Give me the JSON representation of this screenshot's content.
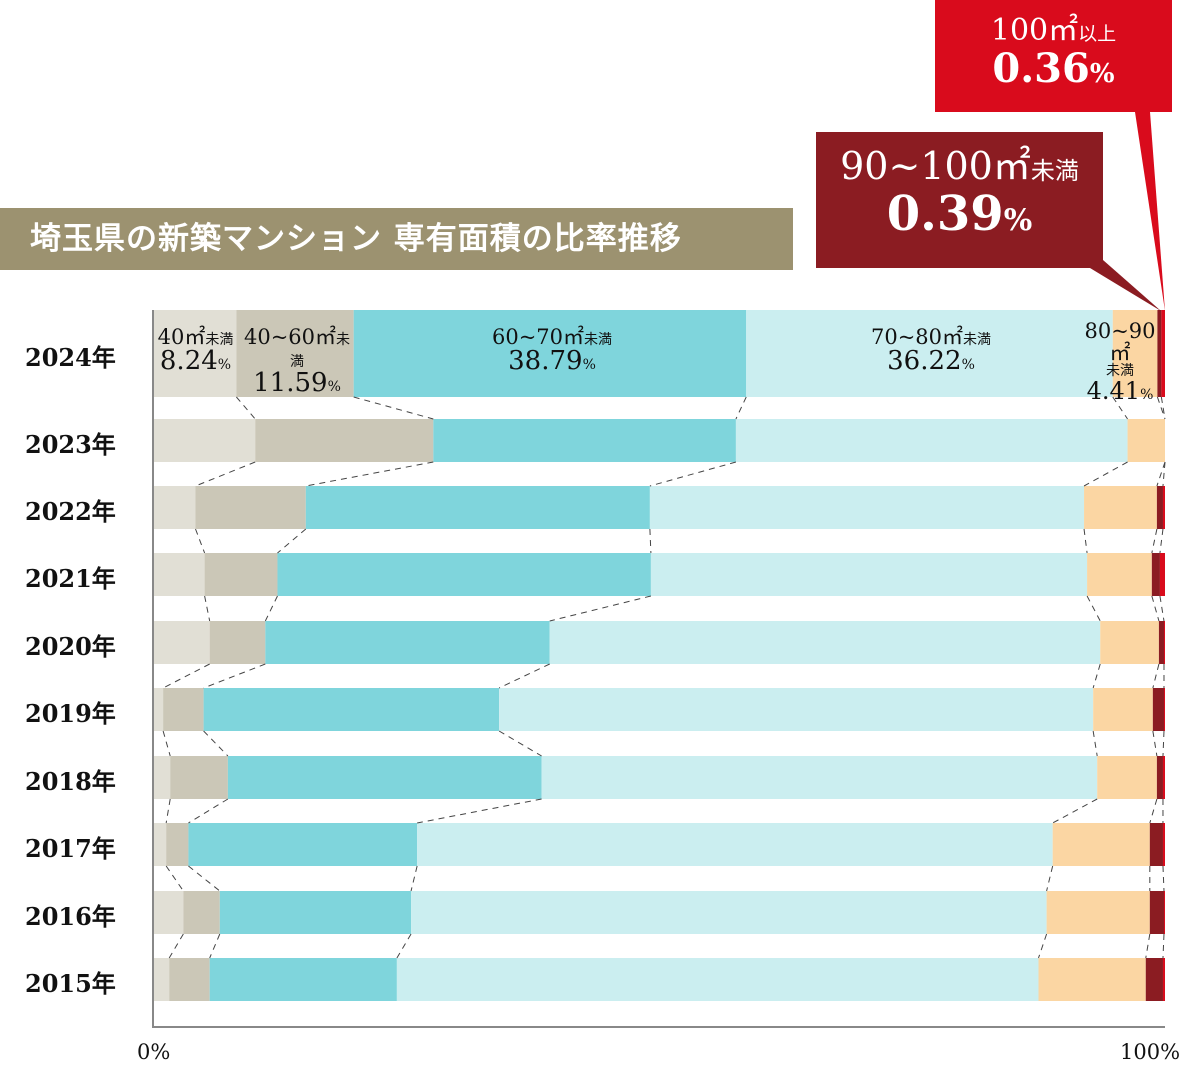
{
  "title": "埼玉県の新築マンション 専有面積の比率推移",
  "chart_data": {
    "type": "bar",
    "orientation": "horizontal-stacked-100",
    "title": "埼玉県の新築マンション 専有面積の比率推移",
    "xlim": [
      0,
      100
    ],
    "x_tick_labels": [
      "0%",
      "100%"
    ],
    "categories": [
      "2024年",
      "2023年",
      "2022年",
      "2021年",
      "2020年",
      "2019年",
      "2018年",
      "2017年",
      "2016年",
      "2015年"
    ],
    "series": [
      {
        "name": "40㎡未満",
        "color": "#e1dfd5",
        "values": [
          8.24,
          10.1,
          4.2,
          5.1,
          5.6,
          1.0,
          1.7,
          1.3,
          3.0,
          1.6
        ]
      },
      {
        "name": "40~60㎡未満",
        "color": "#cbc7b7",
        "values": [
          11.59,
          17.6,
          10.9,
          7.2,
          5.5,
          4.0,
          5.7,
          2.2,
          3.6,
          4.0
        ]
      },
      {
        "name": "60~70㎡未満",
        "color": "#7fd5dc",
        "values": [
          38.79,
          29.9,
          34.0,
          36.9,
          28.1,
          29.2,
          31.0,
          22.6,
          18.9,
          18.5
        ]
      },
      {
        "name": "70~80㎡未満",
        "color": "#cbeef0",
        "values": [
          36.22,
          38.7,
          42.9,
          43.1,
          54.4,
          58.7,
          54.9,
          62.8,
          62.8,
          63.4
        ]
      },
      {
        "name": "80~90㎡未満",
        "color": "#fbd6a3",
        "values": [
          4.41,
          3.7,
          7.2,
          6.4,
          5.8,
          5.9,
          5.9,
          9.6,
          10.2,
          10.6
        ]
      },
      {
        "name": "90~100㎡未満",
        "color": "#8b1c22",
        "values": [
          0.39,
          0,
          0.6,
          0.8,
          0.5,
          1.1,
          0.6,
          1.3,
          1.4,
          1.7
        ]
      },
      {
        "name": "100㎡以上",
        "color": "#d90b1c",
        "values": [
          0.36,
          0,
          0.2,
          0.5,
          0.1,
          0.1,
          0.2,
          0.2,
          0.1,
          0.2
        ]
      }
    ],
    "labels_2024": [
      {
        "name": "40㎡",
        "suffix": "未満",
        "value": "8.24",
        "unit": "%"
      },
      {
        "name": "40~60㎡",
        "suffix": "未満",
        "value": "11.59",
        "unit": "%"
      },
      {
        "name": "60~70㎡",
        "suffix": "未満",
        "value": "38.79",
        "unit": "%"
      },
      {
        "name": "70~80㎡",
        "suffix": "未満",
        "value": "36.22",
        "unit": "%"
      },
      {
        "name": "80~90㎡",
        "suffix": "未満",
        "value": "4.41",
        "unit": "%"
      }
    ],
    "callouts": [
      {
        "name": "100㎡",
        "suffix": "以上",
        "value": "0.36",
        "unit": "%",
        "color": "#d90b1c"
      },
      {
        "name": "90~100㎡",
        "suffix": "未満",
        "value": "0.39",
        "unit": "%",
        "color": "#8b1c22"
      }
    ]
  }
}
